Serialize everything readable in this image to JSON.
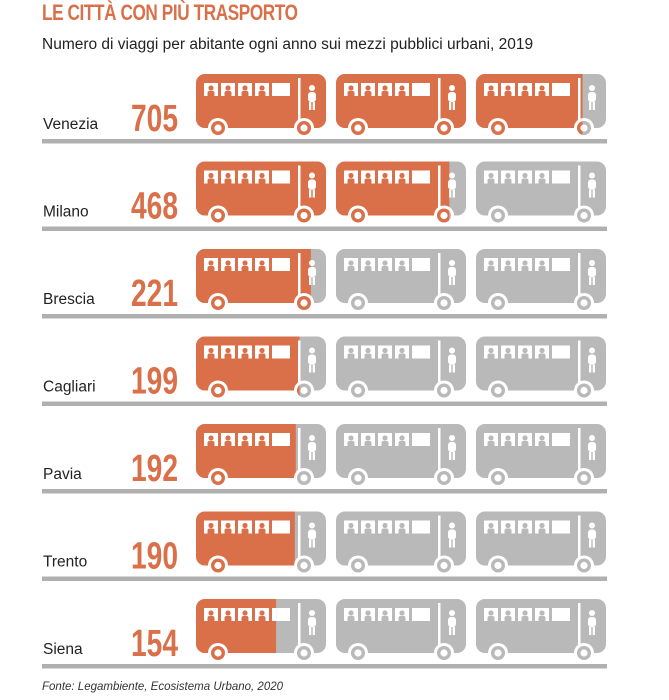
{
  "title": "LE CITTÀ CON PIÙ TRASPORTO",
  "subtitle": "Numero di viaggi per abitante ogni anno sui mezzi pubblici urbani, 2019",
  "source": "Fonte: Legambiente, Ecosistema Urbano, 2020",
  "colors": {
    "accent": "#d9704a",
    "empty": "#b9b9b9",
    "baseline": "#b0b0b0",
    "text": "#222222"
  },
  "chart_data": {
    "type": "bar",
    "style": "pictogram (buses)",
    "units_per_icon": 250,
    "icons_per_row": 3,
    "categories": [
      "Venezia",
      "Milano",
      "Brescia",
      "Cagliari",
      "Pavia",
      "Trento",
      "Siena"
    ],
    "values": [
      705,
      468,
      221,
      199,
      192,
      190,
      154
    ]
  }
}
